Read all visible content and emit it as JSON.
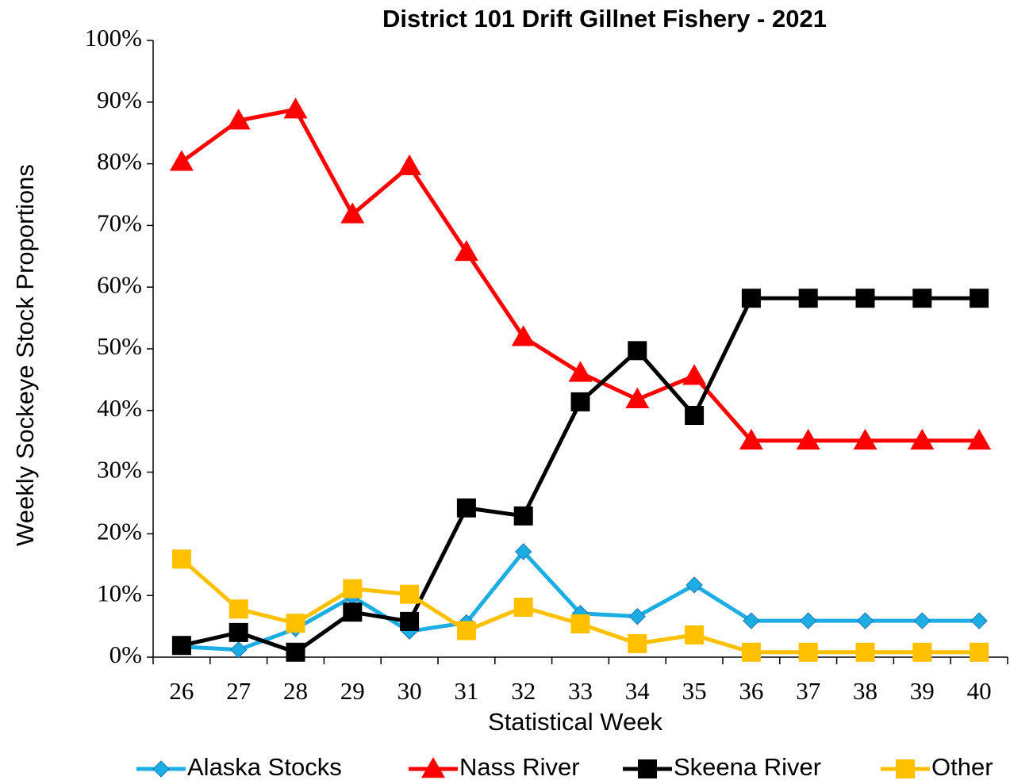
{
  "chart_data": {
    "type": "line",
    "title": "District 101 Drift Gillnet Fishery - 2021",
    "x_label": "Statistical Week",
    "y_label": "Weekly Sockeye  Stock Proportions",
    "categories": [
      "26",
      "27",
      "28",
      "29",
      "30",
      "31",
      "32",
      "33",
      "34",
      "35",
      "36",
      "37",
      "38",
      "39",
      "40"
    ],
    "ylim": [
      0,
      100
    ],
    "yticks": [
      {
        "value": 0,
        "label": "0%"
      },
      {
        "value": 10,
        "label": "10%"
      },
      {
        "value": 20,
        "label": "20%"
      },
      {
        "value": 30,
        "label": "30%"
      },
      {
        "value": 40,
        "label": "40%"
      },
      {
        "value": 50,
        "label": "50%"
      },
      {
        "value": 60,
        "label": "60%"
      },
      {
        "value": 70,
        "label": "70%"
      },
      {
        "value": 80,
        "label": "80%"
      },
      {
        "value": 90,
        "label": "90%"
      },
      {
        "value": 100,
        "label": "100%"
      }
    ],
    "grid": false,
    "legend": "bottom",
    "series": [
      {
        "name": "Alaska Stocks",
        "color": "#1cade4",
        "marker": "diamond",
        "values": [
          1.7,
          1.2,
          4.6,
          9.8,
          4.2,
          5.6,
          17.1,
          7.1,
          6.6,
          11.7,
          5.9,
          5.9,
          5.9,
          5.9,
          5.9
        ]
      },
      {
        "name": "Nass River",
        "color": "#ff0000",
        "marker": "triangle",
        "values": [
          80.3,
          87.0,
          88.8,
          71.8,
          79.6,
          65.7,
          51.9,
          46.1,
          41.8,
          45.6,
          35.1,
          35.1,
          35.1,
          35.1,
          35.1
        ]
      },
      {
        "name": "Skeena River",
        "color": "#000000",
        "marker": "square",
        "values": [
          1.9,
          4.0,
          0.8,
          7.3,
          5.8,
          24.2,
          22.9,
          41.4,
          49.7,
          39.2,
          58.2,
          58.2,
          58.2,
          58.2,
          58.2
        ]
      },
      {
        "name": "Other",
        "color": "#ffc000",
        "marker": "square",
        "values": [
          15.9,
          7.8,
          5.5,
          11.1,
          10.2,
          4.3,
          8.1,
          5.4,
          2.2,
          3.6,
          0.8,
          0.8,
          0.8,
          0.8,
          0.8
        ]
      }
    ]
  }
}
